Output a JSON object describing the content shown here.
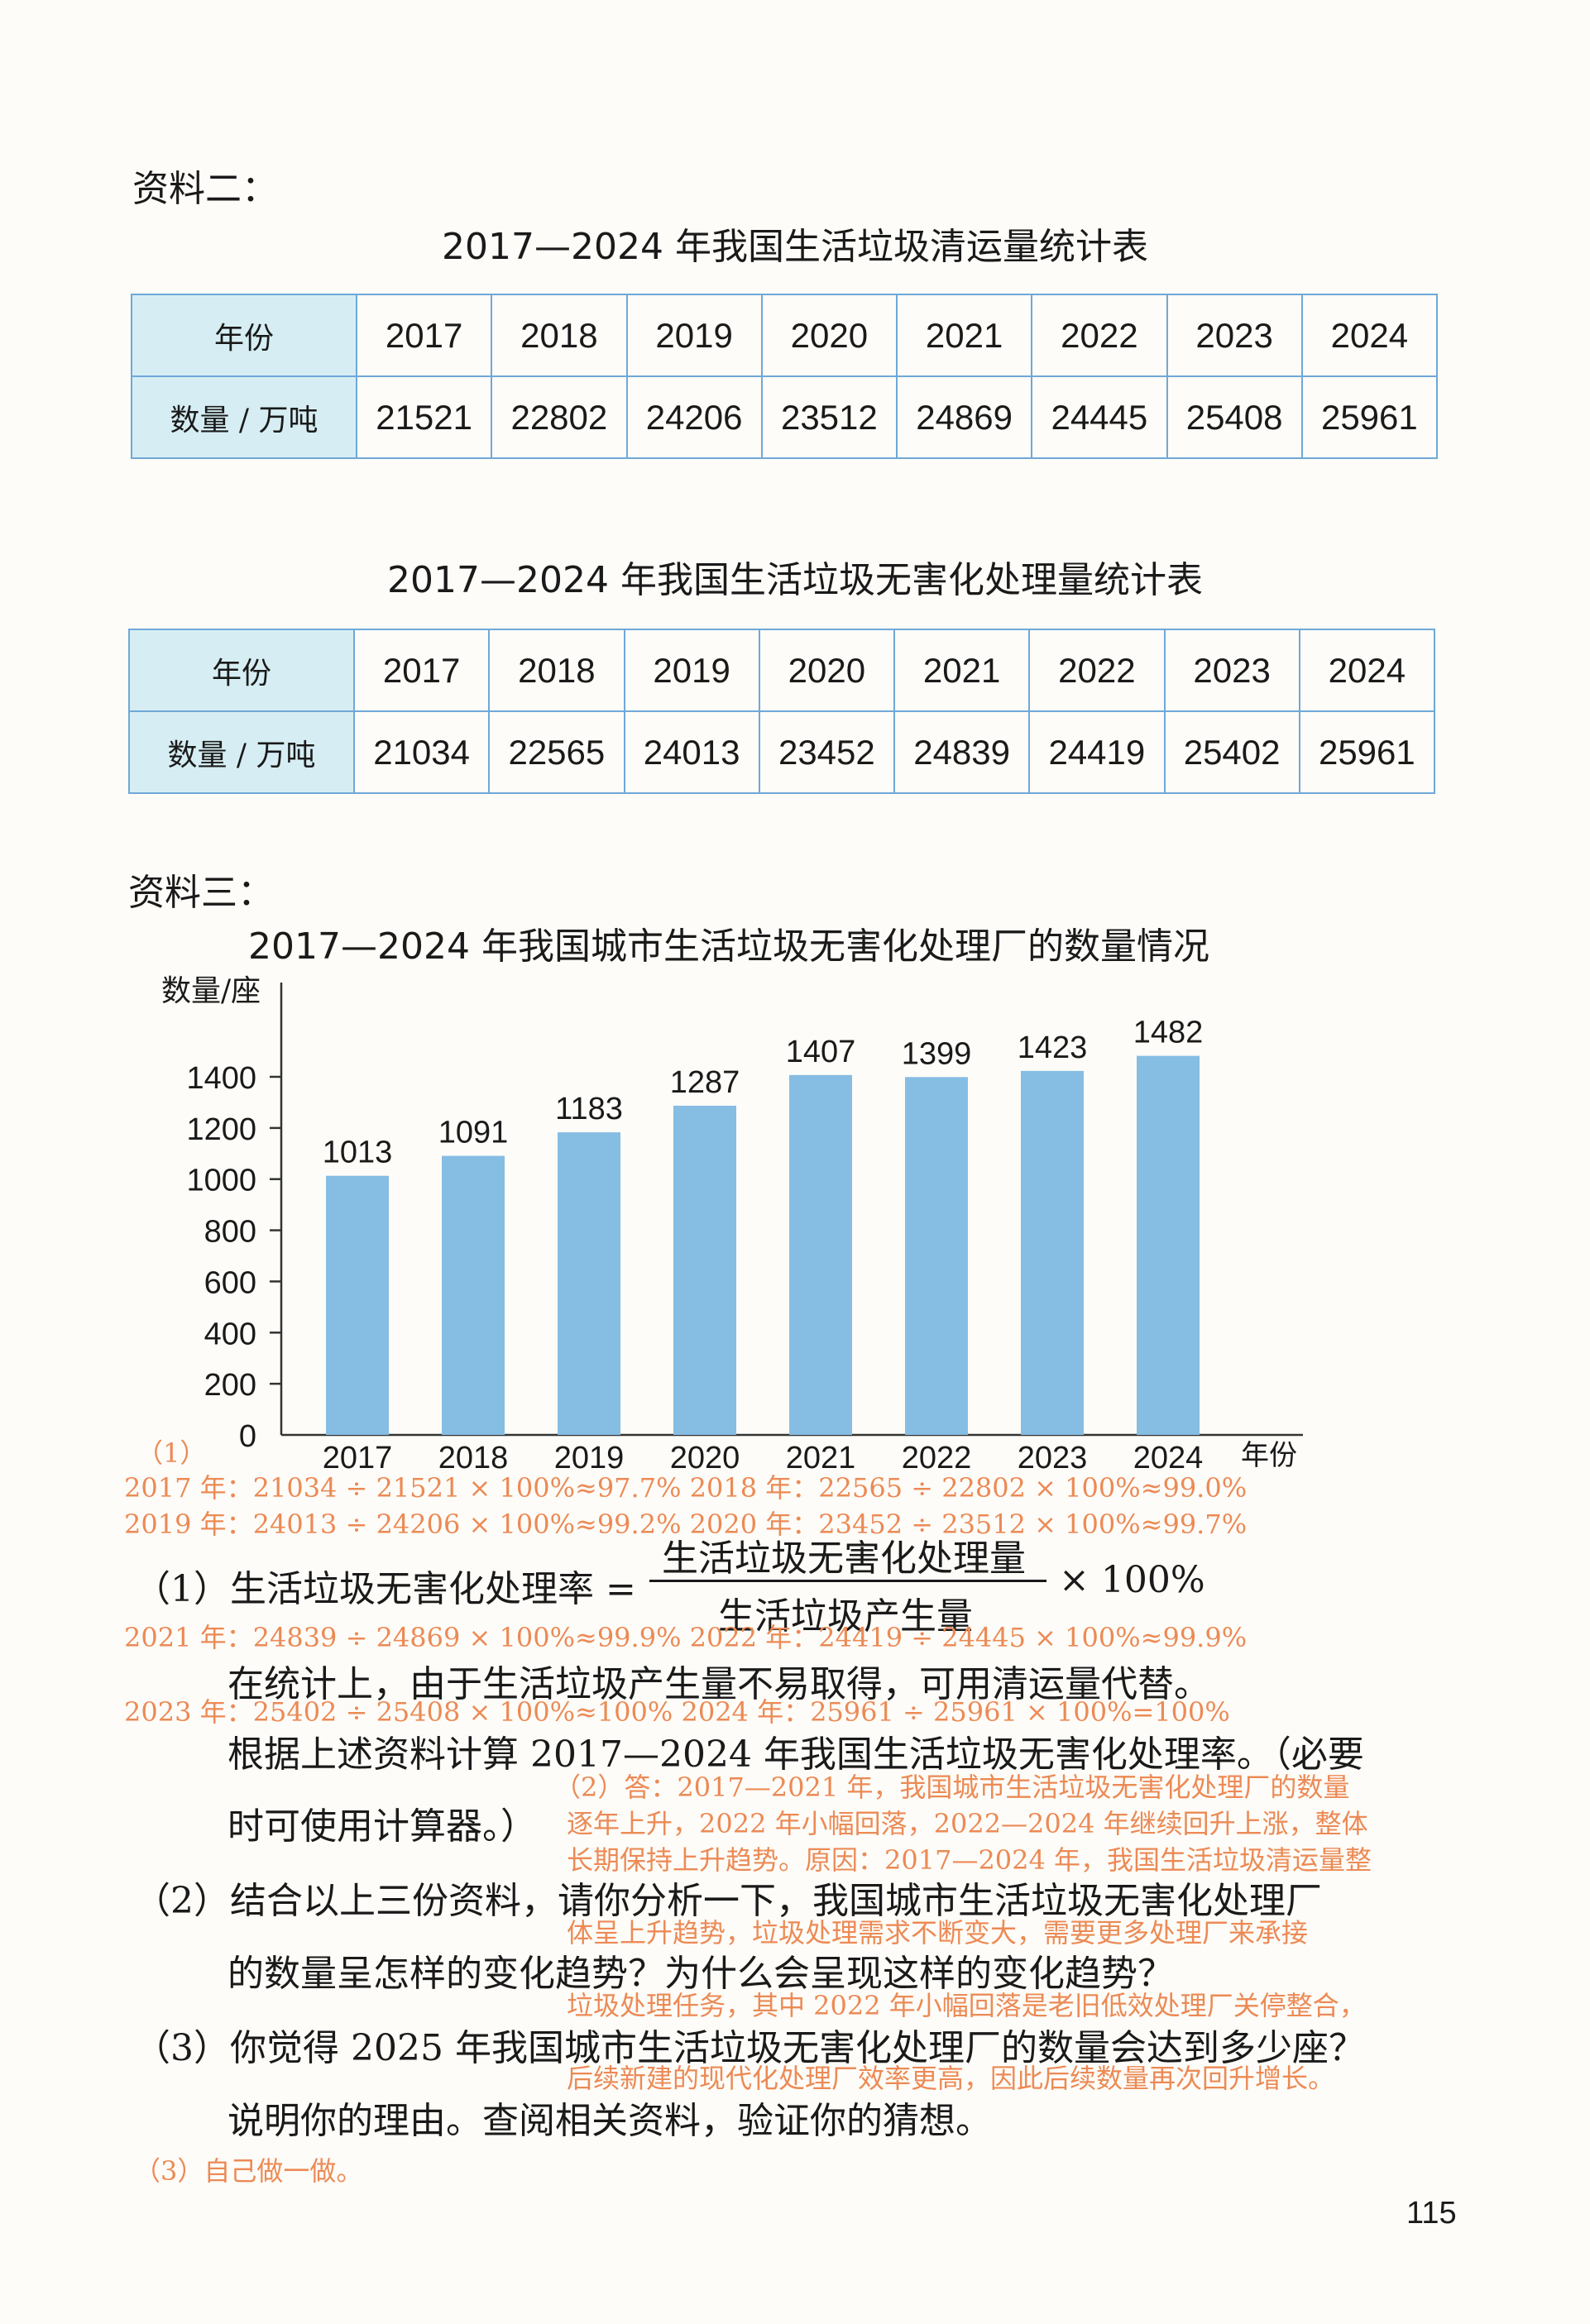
{
  "material2": {
    "label": "资料二：",
    "table1": {
      "title": "2017—2024 年我国生活垃圾清运量统计表",
      "row1_header": "年份",
      "row2_header": "数量 / 万吨",
      "years": [
        "2017",
        "2018",
        "2019",
        "2020",
        "2021",
        "2022",
        "2023",
        "2024"
      ],
      "values": [
        "21521",
        "22802",
        "24206",
        "23512",
        "24869",
        "24445",
        "25408",
        "25961"
      ]
    },
    "table2": {
      "title": "2017—2024 年我国生活垃圾无害化处理量统计表",
      "row1_header": "年份",
      "row2_header": "数量 / 万吨",
      "years": [
        "2017",
        "2018",
        "2019",
        "2020",
        "2021",
        "2022",
        "2023",
        "2024"
      ],
      "values": [
        "21034",
        "22565",
        "24013",
        "23452",
        "24839",
        "24419",
        "25402",
        "25961"
      ]
    }
  },
  "material3": {
    "label": "资料三："
  },
  "chart_data": {
    "type": "bar",
    "title": "2017—2024 年我国城市生活垃圾无害化处理厂的数量情况",
    "ylabel": "数量/座",
    "xlabel": "年份",
    "categories": [
      "2017",
      "2018",
      "2019",
      "2020",
      "2021",
      "2022",
      "2023",
      "2024"
    ],
    "values": [
      1013,
      1091,
      1183,
      1287,
      1407,
      1399,
      1423,
      1482
    ],
    "ylim": [
      0,
      1400
    ],
    "yticks": [
      "0",
      "200",
      "400",
      "600",
      "800",
      "1000",
      "1200",
      "1400"
    ],
    "grid": false,
    "bar_color": "#86bde3"
  },
  "answers": {
    "a1_label": "（1）",
    "a1_line1": "2017 年：21034 ÷ 21521 × 100%≈97.7%   2018 年：22565 ÷ 22802 × 100%≈99.0%",
    "a1_line2": "2019 年：24013 ÷ 24206 × 100%≈99.2%   2020 年：23452 ÷ 23512 × 100%≈99.7%",
    "a1_line3": "2021 年：24839 ÷ 24869 × 100%≈99.9%   2022 年：24419 ÷ 24445 × 100%≈99.9%",
    "a1_line4": "2023 年：25402 ÷ 25408 × 100%≈100%    2024 年：25961 ÷ 25961 × 100%=100%",
    "a2_line1": "（2）答：2017—2021 年，我国城市生活垃圾无害化处理厂的数量",
    "a2_line2": "逐年上升，2022 年小幅回落，2022—2024 年继续回升上涨，整体",
    "a2_line3": "长期保持上升趋势。原因：2017—2024 年，我国生活垃圾清运量整",
    "a2_line4": "体呈上升趋势，垃圾处理需求不断变大，需要更多处理厂来承接",
    "a2_line5": "垃圾处理任务，其中 2022 年小幅回落是老旧低效处理厂关停整合，",
    "a2_line6": "后续新建的现代化处理厂效率更高，因此后续数量再次回升增长。",
    "a3": "（3）自己做一做。"
  },
  "questions": {
    "q1_prefix": "（1）生活垃圾无害化处理率 =",
    "q1_numerator": "生活垃圾无害化处理量",
    "q1_denominator": "生活垃圾产生量",
    "q1_suffix": "× 100%",
    "q1_line2": "在统计上，由于生活垃圾产生量不易取得，可用清运量代替。",
    "q1_line3": "根据上述资料计算 2017—2024 年我国生活垃圾无害化处理率。（必要",
    "q1_line4": "时可使用计算器。）",
    "q2_line1": "（2）结合以上三份资料，请你分析一下，我国城市生活垃圾无害化处理厂",
    "q2_line2": "的数量呈怎样的变化趋势？为什么会呈现这样的变化趋势？",
    "q3_line1": "（3）你觉得 2025 年我国城市生活垃圾无害化处理厂的数量会达到多少座？",
    "q3_line2": "说明你的理由。查阅相关资料，验证你的猜想。"
  },
  "page_number": "115"
}
